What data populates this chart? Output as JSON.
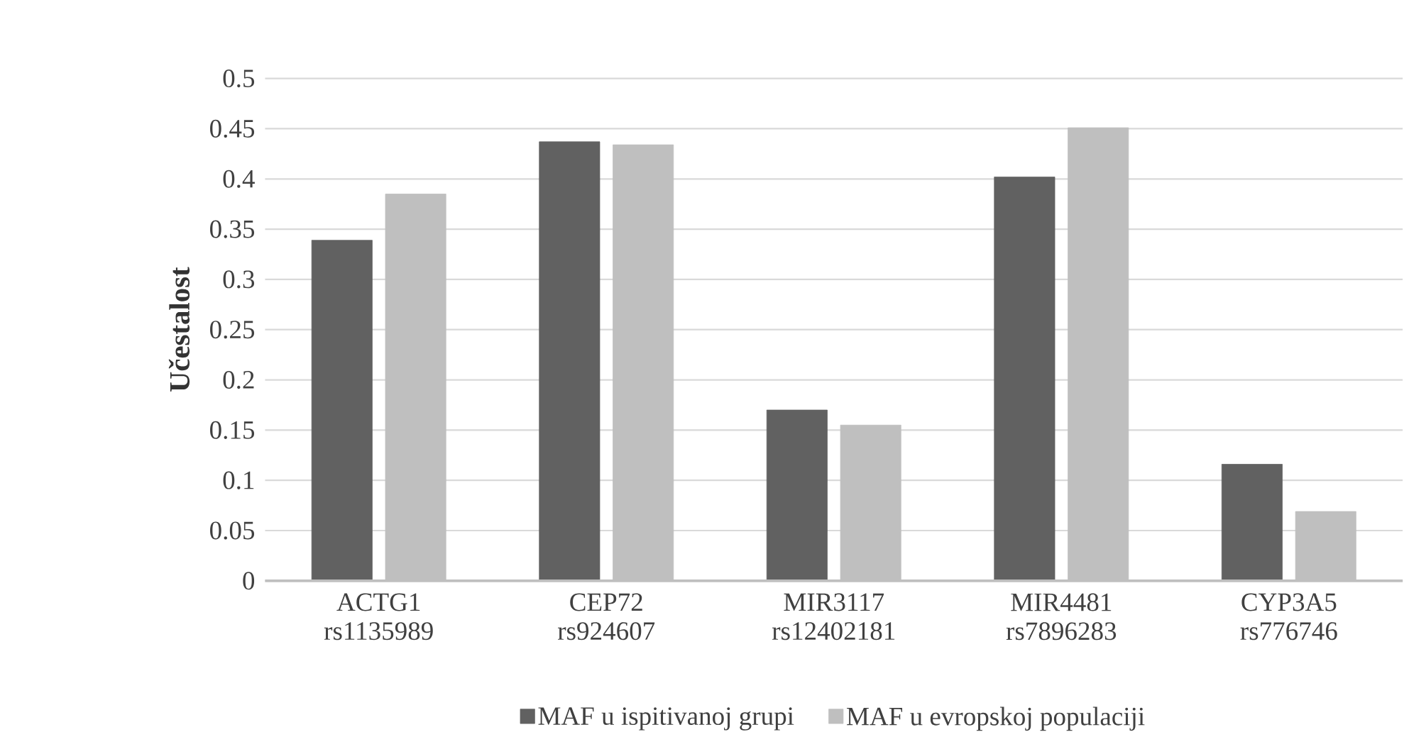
{
  "chart_data": {
    "type": "bar",
    "ylabel": "Učestalost",
    "categories": [
      "ACTG1 rs1135989",
      "CEP72 rs924607",
      "MIR3117 rs12402181",
      "MIR4481 rs7896283",
      "CYP3A5 rs776746"
    ],
    "series": [
      {
        "name": "MAF u ispitivanoj grupi",
        "color": "#616161",
        "values": [
          0.339,
          0.437,
          0.17,
          0.402,
          0.116
        ]
      },
      {
        "name": "MAF u evropskoj populaciji",
        "color": "#bfbfbf",
        "values": [
          0.385,
          0.434,
          0.155,
          0.451,
          0.069
        ]
      }
    ],
    "ylim": [
      0,
      0.5
    ],
    "yticks": [
      0,
      0.05,
      0.1,
      0.15,
      0.2,
      0.25,
      0.3,
      0.35,
      0.4,
      0.45,
      0.5
    ],
    "grid": "y",
    "legend": "bottom"
  }
}
